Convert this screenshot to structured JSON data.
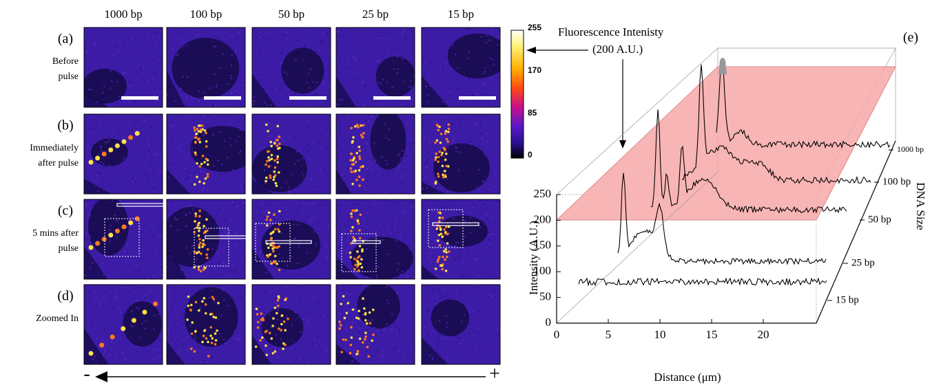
{
  "figure": {
    "columns": [
      "1000 bp",
      "100 bp",
      "50 bp",
      "25 bp",
      "15 bp"
    ],
    "rows": [
      {
        "label": "(a)",
        "caption": [
          "Before",
          "pulse"
        ]
      },
      {
        "label": "(b)",
        "caption": [
          "Immediately",
          "after pulse"
        ]
      },
      {
        "label": "(c)",
        "caption": [
          "5 mins after",
          "pulse"
        ]
      },
      {
        "label": "(d)",
        "caption": [
          "Zoomed In"
        ]
      }
    ],
    "polarity": [
      "-",
      "+"
    ],
    "colorbar": {
      "ticks": [
        "255",
        "170",
        "85",
        "0"
      ]
    },
    "annotation": {
      "label": "Fluorescence Intenisty",
      "value": "(200 A.U.)"
    },
    "plot": {
      "panel": "(e)",
      "y_label": "Intensity (A.U.)",
      "x_label": "Distance (μm)",
      "z_label": "DNA Size",
      "y_ticks": [
        "0",
        "50",
        "100",
        "150",
        "200",
        "250"
      ],
      "x_ticks": [
        "0",
        "5",
        "10",
        "15",
        "20"
      ],
      "z_ticks": [
        "15 bp",
        "25 bp",
        "50 bp",
        "100 bp",
        "1000 bp"
      ]
    }
  }
}
